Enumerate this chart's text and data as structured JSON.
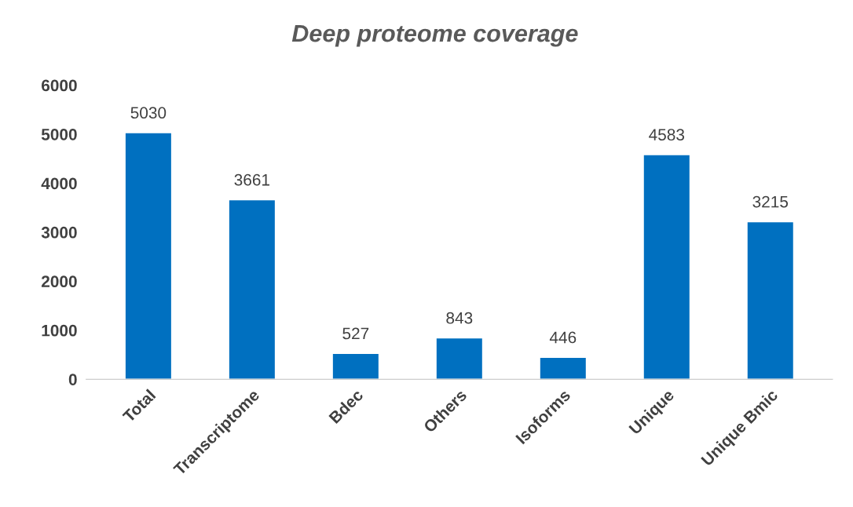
{
  "chart_data": {
    "type": "bar",
    "title": "Deep proteome coverage",
    "categories": [
      "Total",
      "Transcriptome",
      "Bdec",
      "Others",
      "Isoforms",
      "Unique",
      "Unique Bmic"
    ],
    "values": [
      5030,
      3661,
      527,
      843,
      446,
      4583,
      3215
    ],
    "color": "#0070c0",
    "ylim": [
      0,
      6000
    ],
    "yticks": [
      0,
      1000,
      2000,
      3000,
      4000,
      5000,
      6000
    ],
    "data_labels": true
  }
}
